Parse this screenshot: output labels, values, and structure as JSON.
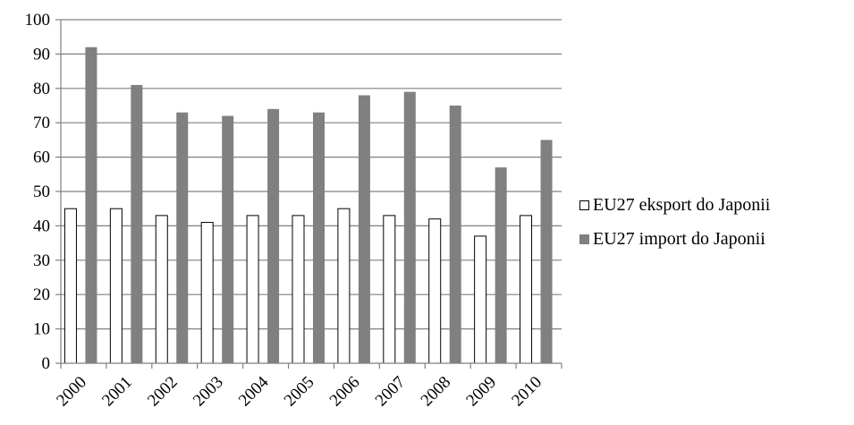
{
  "chart_data": {
    "type": "bar",
    "categories": [
      "2000",
      "2001",
      "2002",
      "2003",
      "2004",
      "2005",
      "2006",
      "2007",
      "2008",
      "2009",
      "2010"
    ],
    "series": [
      {
        "name": "EU27 eksport do Japonii",
        "color": "#ffffff",
        "stroke": "#000000",
        "values": [
          45,
          45,
          43,
          41,
          43,
          43,
          45,
          43,
          42,
          37,
          43
        ]
      },
      {
        "name": "EU27 import do Japonii",
        "color": "#808080",
        "stroke": "#808080",
        "values": [
          92,
          81,
          73,
          72,
          74,
          73,
          78,
          79,
          75,
          57,
          65
        ]
      }
    ],
    "title": "",
    "xlabel": "",
    "ylabel": "",
    "ylim": [
      0,
      100
    ],
    "yticks": [
      "0",
      "10",
      "20",
      "30",
      "40",
      "50",
      "60",
      "70",
      "80",
      "90",
      "100"
    ],
    "grid": true,
    "legend_position": "right"
  }
}
